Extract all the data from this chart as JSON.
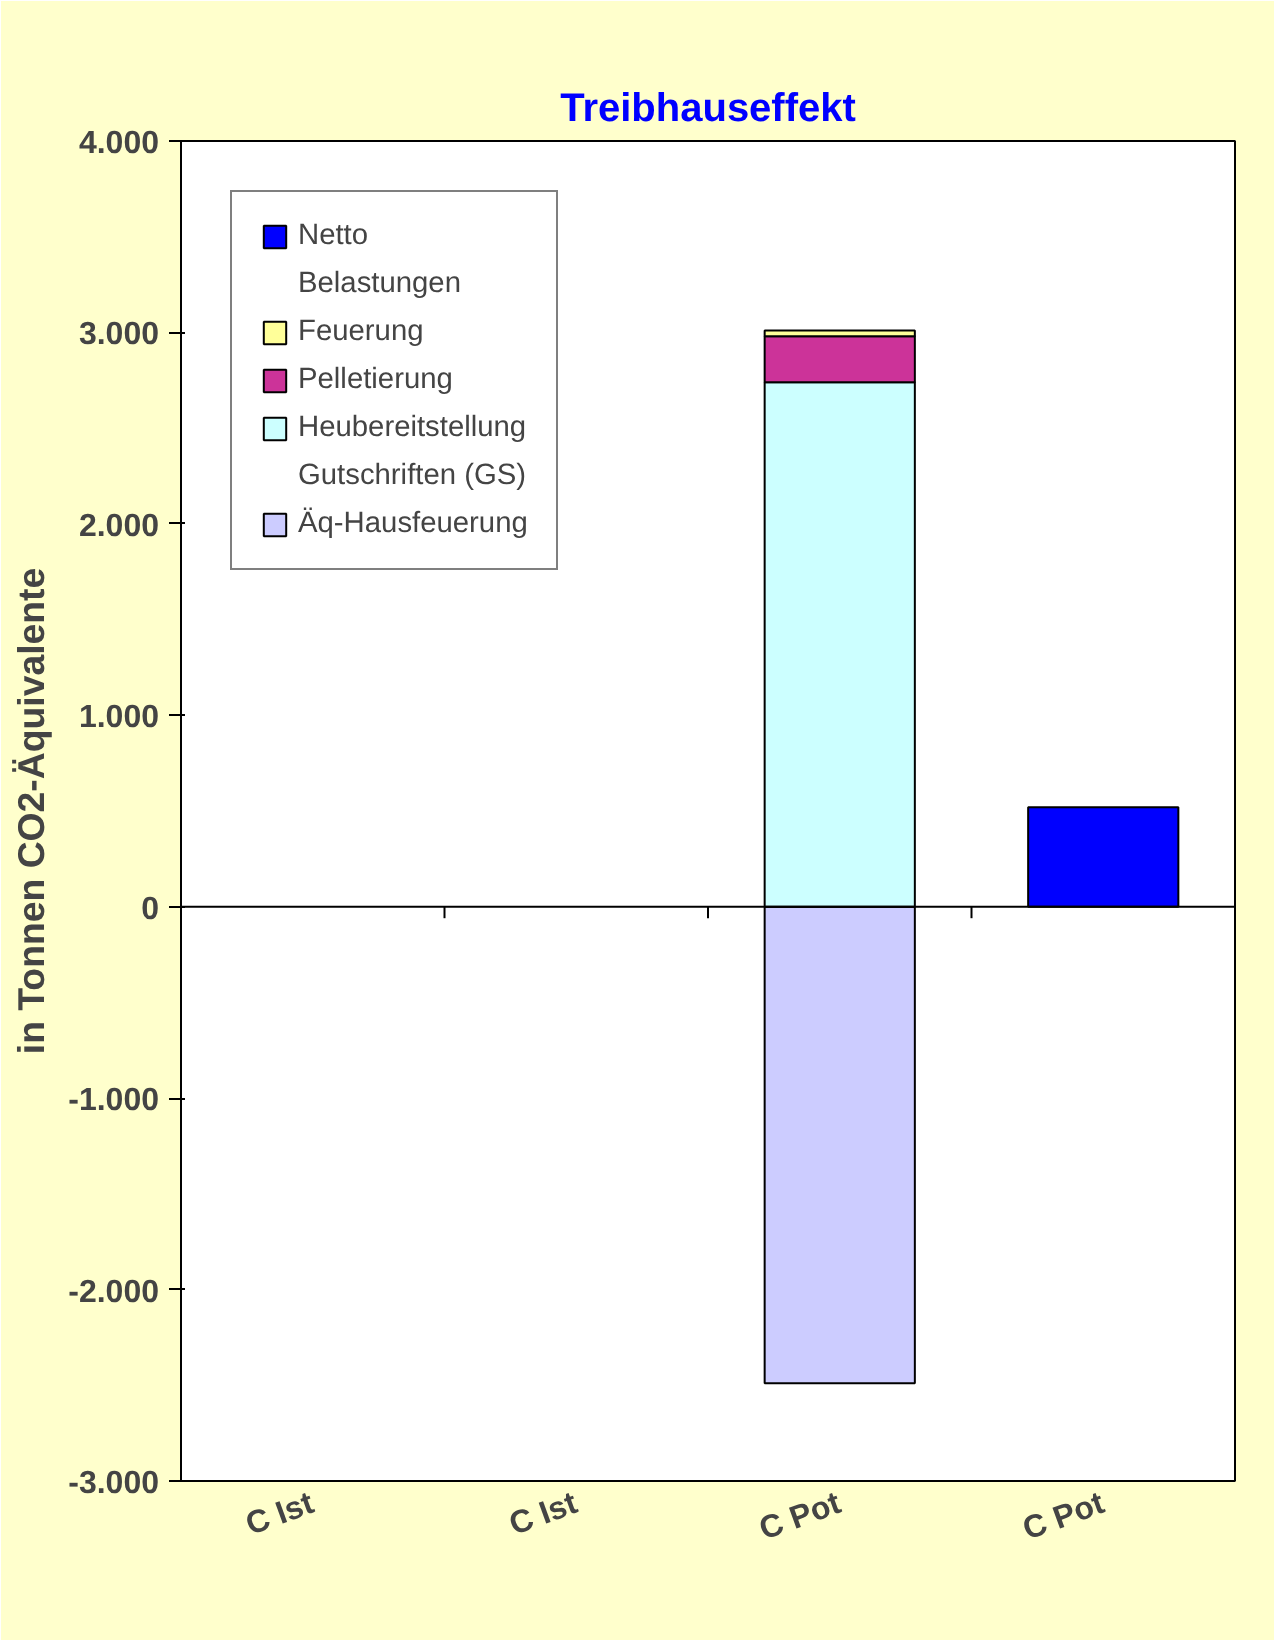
{
  "chart_data": {
    "type": "bar",
    "title": "Treibhauseffekt",
    "ylabel": "in Tonnen CO2-Äquivalente",
    "categories": [
      "C Ist",
      "C Ist",
      "C Pot",
      "C Pot"
    ],
    "stacked": true,
    "series": [
      {
        "name": "Äq-Hausfeuerung",
        "color": "#ccccff",
        "values": [
          null,
          null,
          -2490,
          null
        ]
      },
      {
        "name": "Heubereitstellung",
        "color": "#ccffff",
        "values": [
          null,
          null,
          2740,
          null
        ]
      },
      {
        "name": "Pelletierung",
        "color": "#cc3399",
        "values": [
          null,
          null,
          240,
          null
        ]
      },
      {
        "name": "Feuerung",
        "color": "#ffff99",
        "values": [
          null,
          null,
          30,
          null
        ]
      },
      {
        "name": "Netto",
        "color": "#0000ff",
        "values": [
          null,
          null,
          null,
          520
        ]
      }
    ],
    "annotations": [
      "Belastungen",
      "Gutschriften (GS)"
    ],
    "ylim": [
      -3000,
      4000
    ],
    "yticks": [
      {
        "value": -3000,
        "label": "-3.000"
      },
      {
        "value": -2000,
        "label": "-2.000"
      },
      {
        "value": -1000,
        "label": "-1.000"
      },
      0,
      {
        "value": 1000,
        "label": "1.000"
      },
      {
        "value": 2000,
        "label": "2.000"
      },
      {
        "value": 3000,
        "label": "3.000"
      },
      {
        "value": 4000,
        "label": "4.000"
      }
    ],
    "legend": "top left"
  }
}
